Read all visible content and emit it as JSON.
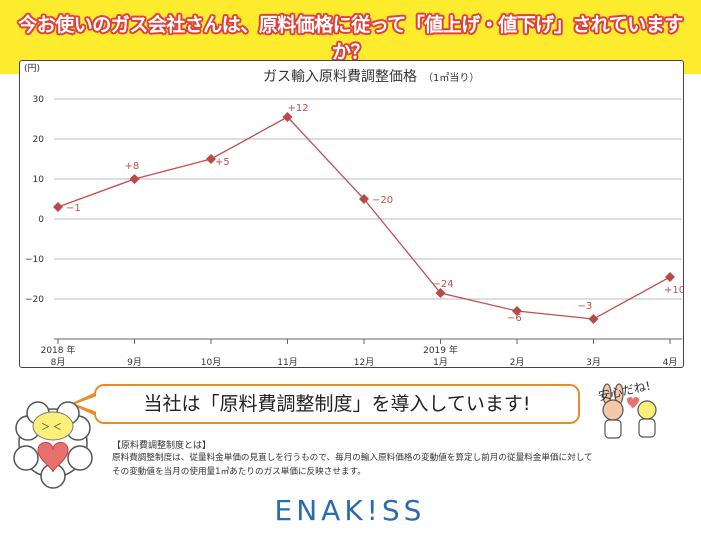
{
  "banner": {
    "title": "今お使いのガス会社さんは、原料価格に従って「値上げ・値下げ」されていますか？"
  },
  "chart_data": {
    "type": "line",
    "title": "ガス輸入原料費調整価格",
    "subtitle": "（1㎥当り）",
    "unit_label": "(円)",
    "ylim": [
      -30,
      30
    ],
    "yticks": [
      "30",
      "20",
      "10",
      "0",
      "−10",
      "−20"
    ],
    "grid": true,
    "categories": [
      "8月",
      "9月",
      "10月",
      "11月",
      "12月",
      "1月",
      "2月",
      "3月",
      "4月"
    ],
    "year_labels": [
      "2018 年",
      "",
      "",
      "",
      "",
      "2019 年",
      "",
      "",
      ""
    ],
    "values": [
      3,
      10,
      15,
      25.5,
      5,
      -18.5,
      -23,
      -25,
      -14.5
    ],
    "point_labels": [
      "−1",
      "+8",
      "+5",
      "+12",
      "−20",
      "−24",
      "−6",
      "−3",
      "+10"
    ],
    "line_color": "#c0504d",
    "marker_color": "#b94a48"
  },
  "callout": {
    "text": "当社は「原料費調整制度」を導入しています!"
  },
  "explain": {
    "heading": "【原料費調整制度とは】",
    "lines": [
      "原料費調整制度は、従量料金単価の見直しを行うもので、毎月の輸入原料価格の変動値を算定し前月の従量料金単価に対して",
      "その変動値を当月の使用量1㎥あたりのガス単価に反映させます。"
    ]
  },
  "mascot": {
    "speech": "安心だね!"
  },
  "logo": {
    "text": "ENAK!SS"
  },
  "colors": {
    "banner": "#fdec2e",
    "title_outline": "#e0403b",
    "callout_border": "#e98c2a",
    "logo": "#2b6bb3"
  }
}
